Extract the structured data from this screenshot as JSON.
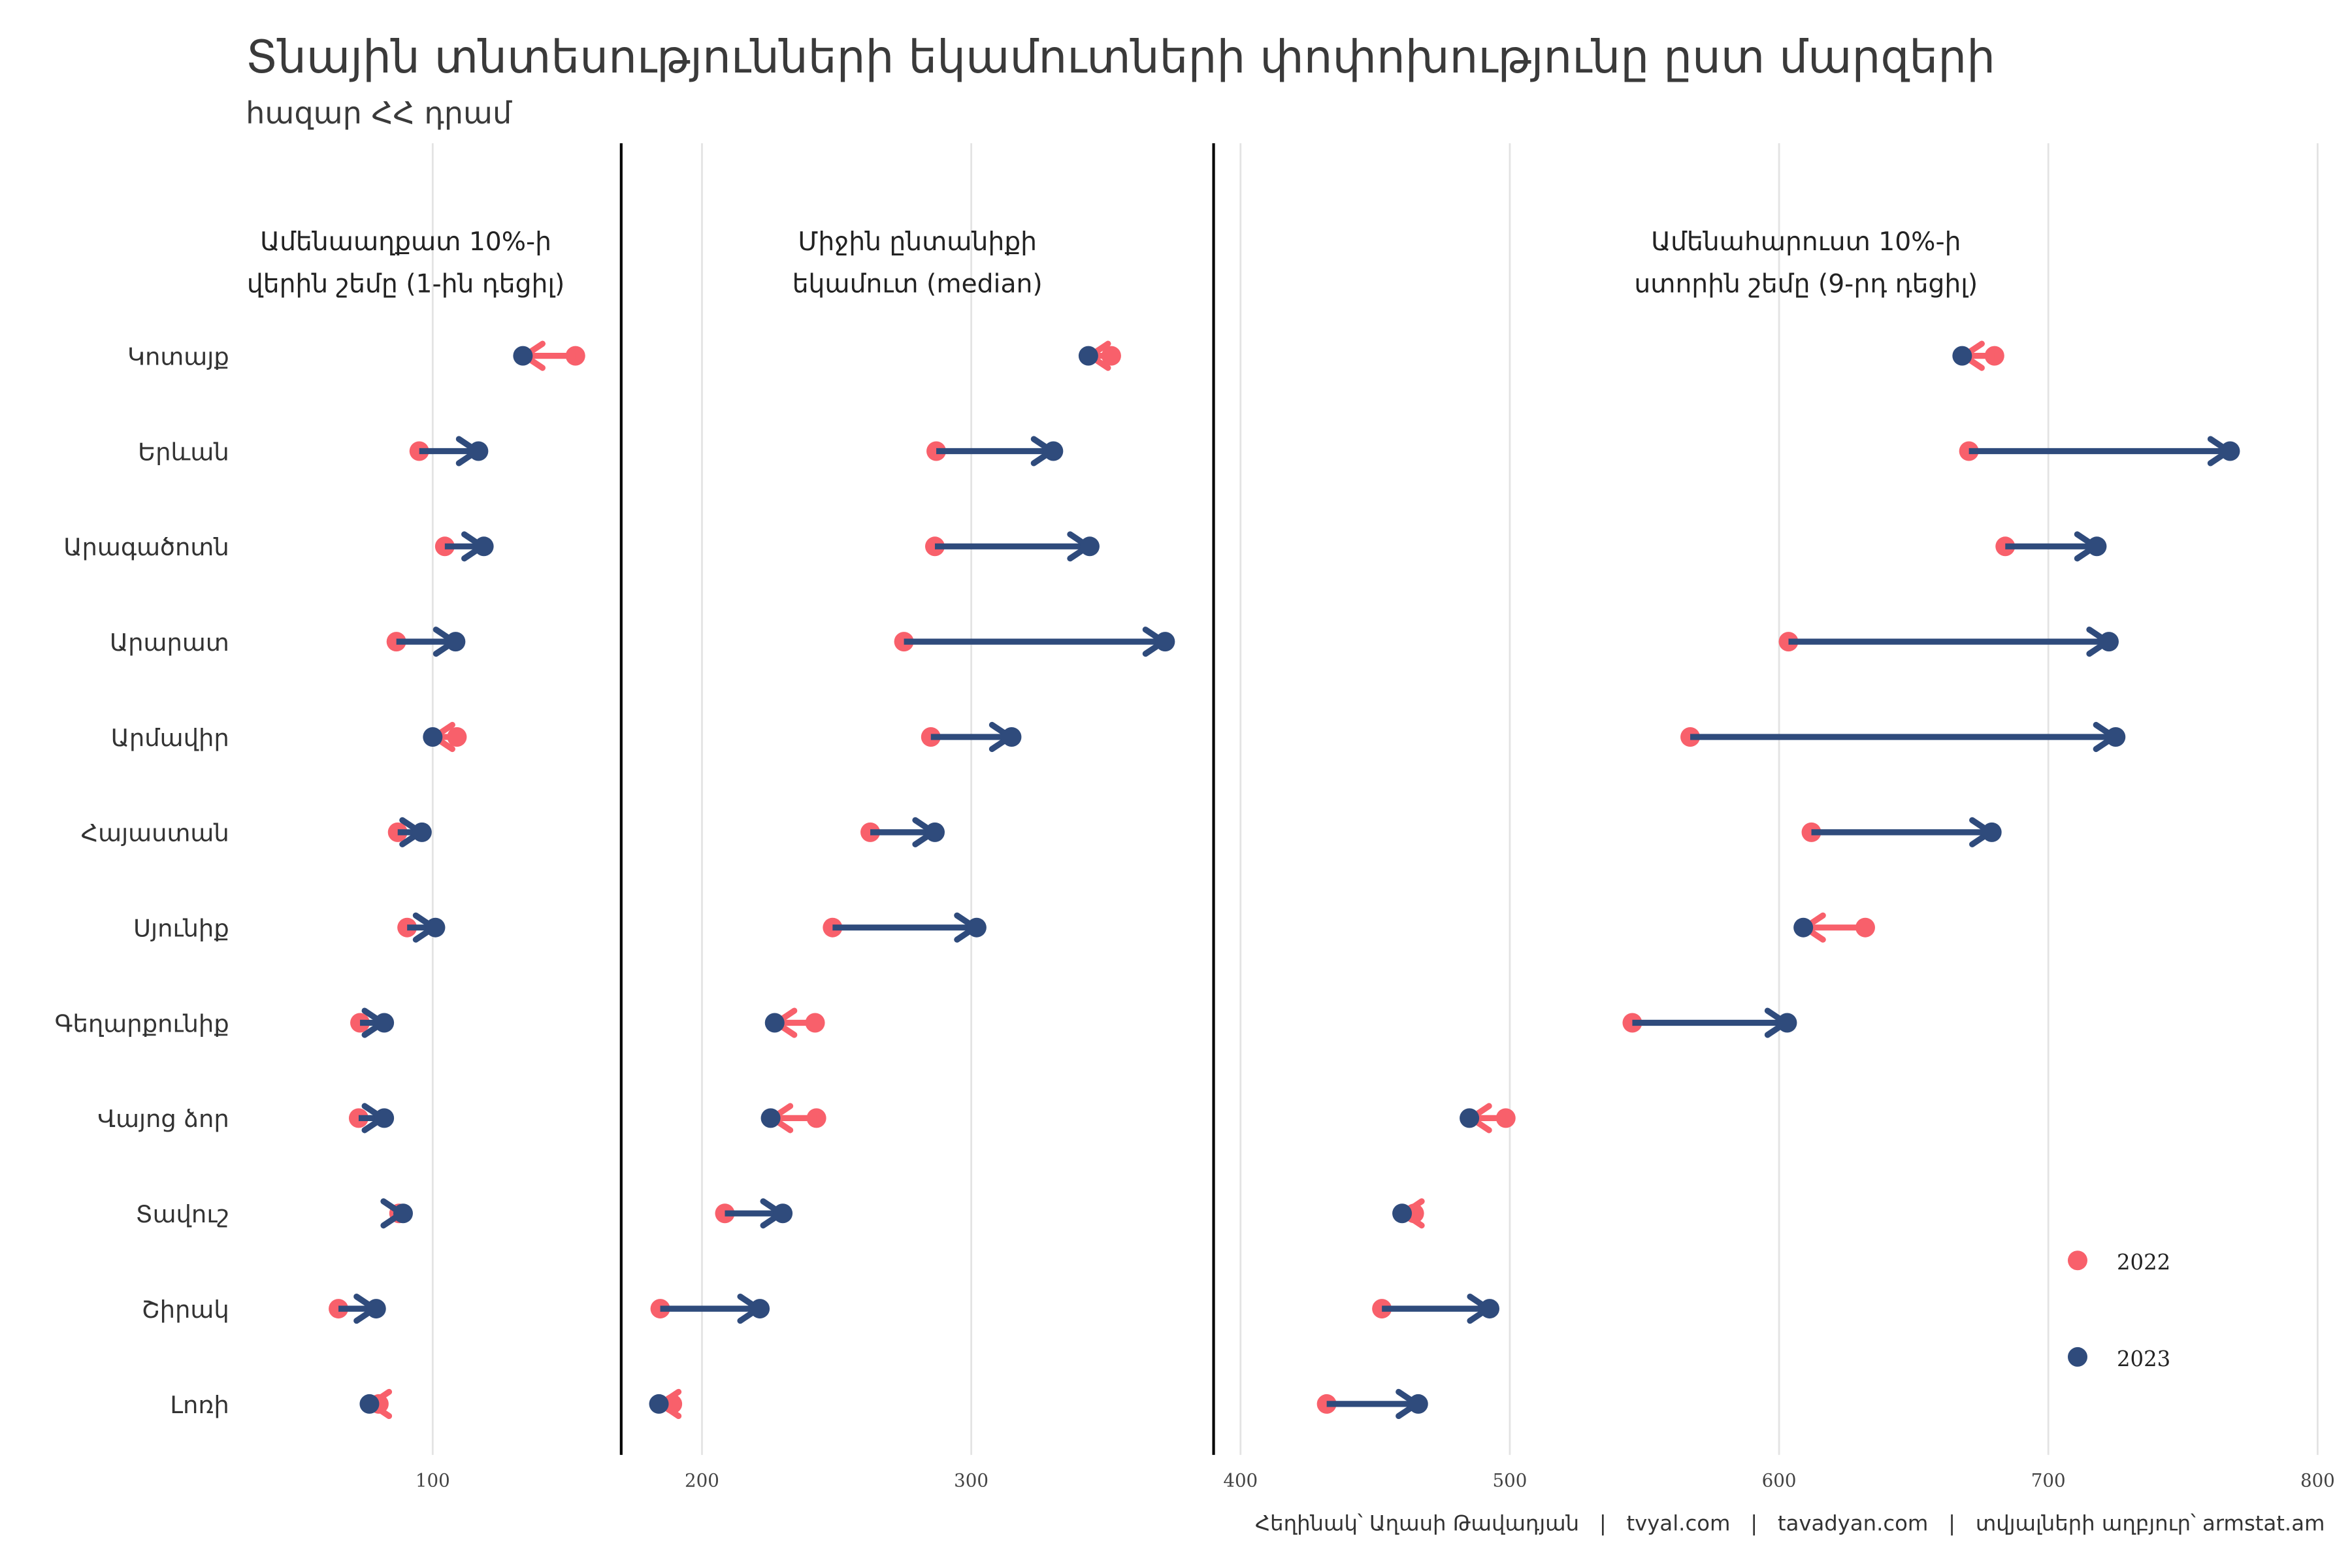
{
  "chart_data": {
    "type": "dumbbell",
    "title": "Տնային տնտեսությունների եկամուտների փոփոխությունը ըստ մարզերի",
    "subtitle": "հազար ՀՀ դրամ",
    "caption": "Հեղինակ՝ Աղասի Թավադյան   |   tvyal.com   |   tavadyan.com   |   տվյալների աղբյուր՝ armstat.am",
    "xlim": [
      0,
      800
    ],
    "xticks": [
      100,
      200,
      300,
      400,
      500,
      600,
      700,
      800
    ],
    "panel_dividers": [
      170,
      390
    ],
    "grid": true,
    "legend_position": "bottom-right",
    "colors": {
      "2022": "#f8606b",
      "2023": "#2f4b7c"
    },
    "legend": [
      "2022",
      "2023"
    ],
    "panels": [
      {
        "label": [
          "Ամենաաղքատ 10%-ի",
          "վերին շեմը (1-ին դեցիլ)"
        ],
        "label_x": 90
      },
      {
        "label": [
          "Միջին ընտանիքի",
          "եկամուտ (median)"
        ],
        "label_x": 280
      },
      {
        "label": [
          "Ամենահարուստ 10%-ի",
          "ստորին շեմը (9-րդ դեցիլ)"
        ],
        "label_x": 610
      }
    ],
    "categories": [
      "Կոտայք",
      "Երևան",
      "Արագածոտն",
      "Արարատ",
      "Արմավիր",
      "Հայաստան",
      "Սյունիք",
      "Գեղարքունիք",
      "Վայոց ձոր",
      "Տավուշ",
      "Շիրակ",
      "Լոռի"
    ],
    "series": [
      {
        "name": "2022",
        "decile1": [
          153,
          95,
          104.5,
          86.5,
          109,
          87,
          90.5,
          73,
          72.5,
          87.5,
          65,
          80
        ],
        "median": [
          352,
          287,
          286.5,
          275,
          285,
          262.5,
          248.5,
          242,
          242.5,
          208.5,
          184.5,
          189
        ],
        "decile9": [
          680,
          670.5,
          684,
          603.5,
          567,
          612,
          632,
          545.5,
          498.5,
          464.5,
          452.5,
          432
        ]
      },
      {
        "name": "2023",
        "decile1": [
          133.5,
          117,
          119,
          108.5,
          100,
          96,
          101,
          82,
          82,
          89,
          79,
          76.5
        ],
        "median": [
          343.5,
          330.5,
          344,
          372,
          315,
          286.5,
          302,
          227,
          225.5,
          230,
          221.5,
          184
        ],
        "decile9": [
          668,
          767.5,
          718,
          722.5,
          725,
          679,
          609,
          603,
          485,
          460,
          492.5,
          466
        ]
      }
    ]
  }
}
